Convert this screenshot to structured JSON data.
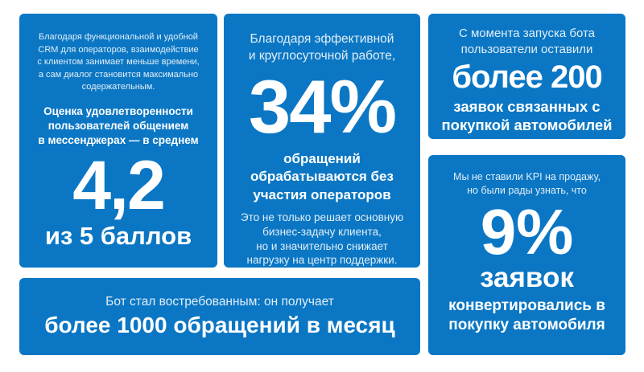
{
  "theme": {
    "page_background": "#ffffff",
    "card_color": "#0b77c4",
    "text_color": "#ffffff"
  },
  "cards": {
    "satisfaction": {
      "intro": "Благодаря функциональной и удобной\nCRM для операторов, взаимодействие\nс клиентом занимает меньше времени,\nа сам диалог становится максимально\nсодержательным.",
      "lead": "Оценка удовлетворенности\nпользователей общением\nв мессенджерах — в среднем",
      "big_number": "4,2",
      "caption": "из 5 баллов"
    },
    "automation": {
      "intro": "Благодаря эффективной\nи круглосуточной работе,",
      "big_number": "34%",
      "lead": "обращений\nобрабатываются без\nучастия операторов",
      "note": "Это не только решает основную\nбизнес-задачу клиента,\nно и значительно снижает\nнагрузку на центр поддержки."
    },
    "requests": {
      "intro": "С момента запуска бота\nпользователи оставили",
      "big_number": "более 200",
      "lead": "заявок связанных с\nпокупкой автомобилей"
    },
    "conversion": {
      "intro": "Мы не ставили KPI на продажу,\nно были рады узнать, что",
      "big_number": "9%",
      "subnumber": "заявок",
      "lead": "конвертировались в\nпокупку автомобиля"
    },
    "volume": {
      "intro": "Бот стал востребованным: он получает",
      "lead": "более 1000 обращений в месяц"
    }
  }
}
